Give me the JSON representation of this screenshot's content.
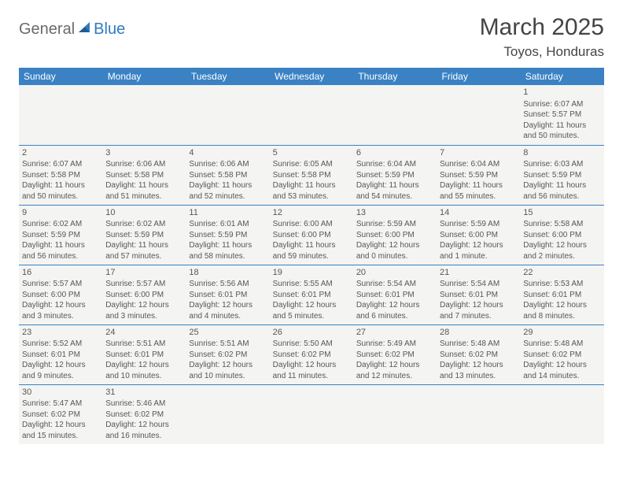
{
  "logo": {
    "text1": "General",
    "text2": "Blue"
  },
  "title": {
    "month_year": "March 2025",
    "location": "Toyos, Honduras"
  },
  "day_headers": [
    "Sunday",
    "Monday",
    "Tuesday",
    "Wednesday",
    "Thursday",
    "Friday",
    "Saturday"
  ],
  "colors": {
    "header_bg": "#3a82c4",
    "header_fg": "#ffffff",
    "cell_bg": "#f4f4f2",
    "border": "#3a82c4",
    "logo_gray": "#6a6a6a",
    "logo_blue": "#2f7bbf"
  },
  "weeks": [
    [
      null,
      null,
      null,
      null,
      null,
      null,
      {
        "n": "1",
        "sr": "Sunrise: 6:07 AM",
        "ss": "Sunset: 5:57 PM",
        "dl": "Daylight: 11 hours and 50 minutes."
      }
    ],
    [
      {
        "n": "2",
        "sr": "Sunrise: 6:07 AM",
        "ss": "Sunset: 5:58 PM",
        "dl": "Daylight: 11 hours and 50 minutes."
      },
      {
        "n": "3",
        "sr": "Sunrise: 6:06 AM",
        "ss": "Sunset: 5:58 PM",
        "dl": "Daylight: 11 hours and 51 minutes."
      },
      {
        "n": "4",
        "sr": "Sunrise: 6:06 AM",
        "ss": "Sunset: 5:58 PM",
        "dl": "Daylight: 11 hours and 52 minutes."
      },
      {
        "n": "5",
        "sr": "Sunrise: 6:05 AM",
        "ss": "Sunset: 5:58 PM",
        "dl": "Daylight: 11 hours and 53 minutes."
      },
      {
        "n": "6",
        "sr": "Sunrise: 6:04 AM",
        "ss": "Sunset: 5:59 PM",
        "dl": "Daylight: 11 hours and 54 minutes."
      },
      {
        "n": "7",
        "sr": "Sunrise: 6:04 AM",
        "ss": "Sunset: 5:59 PM",
        "dl": "Daylight: 11 hours and 55 minutes."
      },
      {
        "n": "8",
        "sr": "Sunrise: 6:03 AM",
        "ss": "Sunset: 5:59 PM",
        "dl": "Daylight: 11 hours and 56 minutes."
      }
    ],
    [
      {
        "n": "9",
        "sr": "Sunrise: 6:02 AM",
        "ss": "Sunset: 5:59 PM",
        "dl": "Daylight: 11 hours and 56 minutes."
      },
      {
        "n": "10",
        "sr": "Sunrise: 6:02 AM",
        "ss": "Sunset: 5:59 PM",
        "dl": "Daylight: 11 hours and 57 minutes."
      },
      {
        "n": "11",
        "sr": "Sunrise: 6:01 AM",
        "ss": "Sunset: 5:59 PM",
        "dl": "Daylight: 11 hours and 58 minutes."
      },
      {
        "n": "12",
        "sr": "Sunrise: 6:00 AM",
        "ss": "Sunset: 6:00 PM",
        "dl": "Daylight: 11 hours and 59 minutes."
      },
      {
        "n": "13",
        "sr": "Sunrise: 5:59 AM",
        "ss": "Sunset: 6:00 PM",
        "dl": "Daylight: 12 hours and 0 minutes."
      },
      {
        "n": "14",
        "sr": "Sunrise: 5:59 AM",
        "ss": "Sunset: 6:00 PM",
        "dl": "Daylight: 12 hours and 1 minute."
      },
      {
        "n": "15",
        "sr": "Sunrise: 5:58 AM",
        "ss": "Sunset: 6:00 PM",
        "dl": "Daylight: 12 hours and 2 minutes."
      }
    ],
    [
      {
        "n": "16",
        "sr": "Sunrise: 5:57 AM",
        "ss": "Sunset: 6:00 PM",
        "dl": "Daylight: 12 hours and 3 minutes."
      },
      {
        "n": "17",
        "sr": "Sunrise: 5:57 AM",
        "ss": "Sunset: 6:00 PM",
        "dl": "Daylight: 12 hours and 3 minutes."
      },
      {
        "n": "18",
        "sr": "Sunrise: 5:56 AM",
        "ss": "Sunset: 6:01 PM",
        "dl": "Daylight: 12 hours and 4 minutes."
      },
      {
        "n": "19",
        "sr": "Sunrise: 5:55 AM",
        "ss": "Sunset: 6:01 PM",
        "dl": "Daylight: 12 hours and 5 minutes."
      },
      {
        "n": "20",
        "sr": "Sunrise: 5:54 AM",
        "ss": "Sunset: 6:01 PM",
        "dl": "Daylight: 12 hours and 6 minutes."
      },
      {
        "n": "21",
        "sr": "Sunrise: 5:54 AM",
        "ss": "Sunset: 6:01 PM",
        "dl": "Daylight: 12 hours and 7 minutes."
      },
      {
        "n": "22",
        "sr": "Sunrise: 5:53 AM",
        "ss": "Sunset: 6:01 PM",
        "dl": "Daylight: 12 hours and 8 minutes."
      }
    ],
    [
      {
        "n": "23",
        "sr": "Sunrise: 5:52 AM",
        "ss": "Sunset: 6:01 PM",
        "dl": "Daylight: 12 hours and 9 minutes."
      },
      {
        "n": "24",
        "sr": "Sunrise: 5:51 AM",
        "ss": "Sunset: 6:01 PM",
        "dl": "Daylight: 12 hours and 10 minutes."
      },
      {
        "n": "25",
        "sr": "Sunrise: 5:51 AM",
        "ss": "Sunset: 6:02 PM",
        "dl": "Daylight: 12 hours and 10 minutes."
      },
      {
        "n": "26",
        "sr": "Sunrise: 5:50 AM",
        "ss": "Sunset: 6:02 PM",
        "dl": "Daylight: 12 hours and 11 minutes."
      },
      {
        "n": "27",
        "sr": "Sunrise: 5:49 AM",
        "ss": "Sunset: 6:02 PM",
        "dl": "Daylight: 12 hours and 12 minutes."
      },
      {
        "n": "28",
        "sr": "Sunrise: 5:48 AM",
        "ss": "Sunset: 6:02 PM",
        "dl": "Daylight: 12 hours and 13 minutes."
      },
      {
        "n": "29",
        "sr": "Sunrise: 5:48 AM",
        "ss": "Sunset: 6:02 PM",
        "dl": "Daylight: 12 hours and 14 minutes."
      }
    ],
    [
      {
        "n": "30",
        "sr": "Sunrise: 5:47 AM",
        "ss": "Sunset: 6:02 PM",
        "dl": "Daylight: 12 hours and 15 minutes."
      },
      {
        "n": "31",
        "sr": "Sunrise: 5:46 AM",
        "ss": "Sunset: 6:02 PM",
        "dl": "Daylight: 12 hours and 16 minutes."
      },
      null,
      null,
      null,
      null,
      null
    ]
  ]
}
